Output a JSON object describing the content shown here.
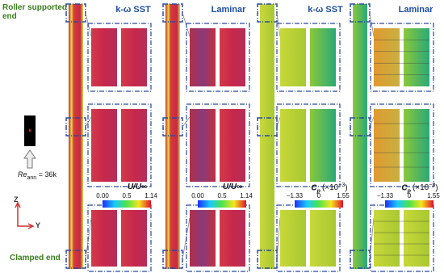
{
  "labels": {
    "top_end": "Roller supported end",
    "bottom_end": "Clamped end",
    "reynolds": {
      "symbol": "Re",
      "subscript": "ann",
      "value": "= 36k"
    },
    "axes": {
      "z": "Z",
      "y": "Y"
    }
  },
  "panels": [
    {
      "title": "k-ω SST",
      "colorbar": {
        "label": "U/U∞",
        "ticks": [
          "0.00",
          "0.5",
          "1.14"
        ]
      }
    },
    {
      "title": "Laminar",
      "colorbar": {
        "label": "U/U∞",
        "ticks": [
          "0.00",
          "0.5",
          "1.14"
        ]
      }
    },
    {
      "title": "k-ω SST",
      "colorbar": {
        "label": {
          "symbol": "C",
          "subscript": "p",
          "factor": "(×10",
          "exponent": "−3",
          "close": ")"
        },
        "ticks": [
          "−1.33",
          "0",
          "1.55"
        ]
      }
    },
    {
      "title": "Laminar",
      "colorbar": {
        "label": {
          "symbol": "C",
          "subscript": "p",
          "factor": "(×10",
          "exponent": "−3",
          "close": ")"
        },
        "ticks": [
          "−1.33",
          "0",
          "1.55"
        ]
      }
    }
  ]
}
